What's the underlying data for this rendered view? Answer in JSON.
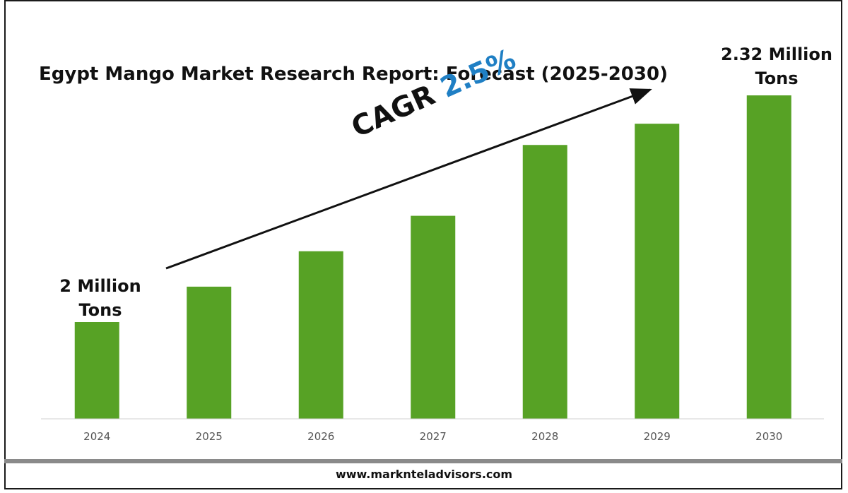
{
  "chart_data": {
    "type": "bar",
    "title": "Egypt Mango Market Research Report: Forecast (2025-2030)",
    "categories": [
      "2024",
      "2025",
      "2026",
      "2027",
      "2028",
      "2029",
      "2030"
    ],
    "series": [
      {
        "values": [
          2.0,
          2.05,
          2.1,
          2.15,
          2.25,
          2.28,
          2.32
        ],
        "color": "#57a225"
      }
    ],
    "first_label": "2 Million Tons",
    "last_label": "2.32 Million Tons",
    "annotation": {
      "text": "CAGR",
      "value": "2.5%"
    },
    "xlabel": "",
    "ylabel": "",
    "grid": false
  },
  "footer": {
    "website": "www.marknteladvisors.com"
  }
}
